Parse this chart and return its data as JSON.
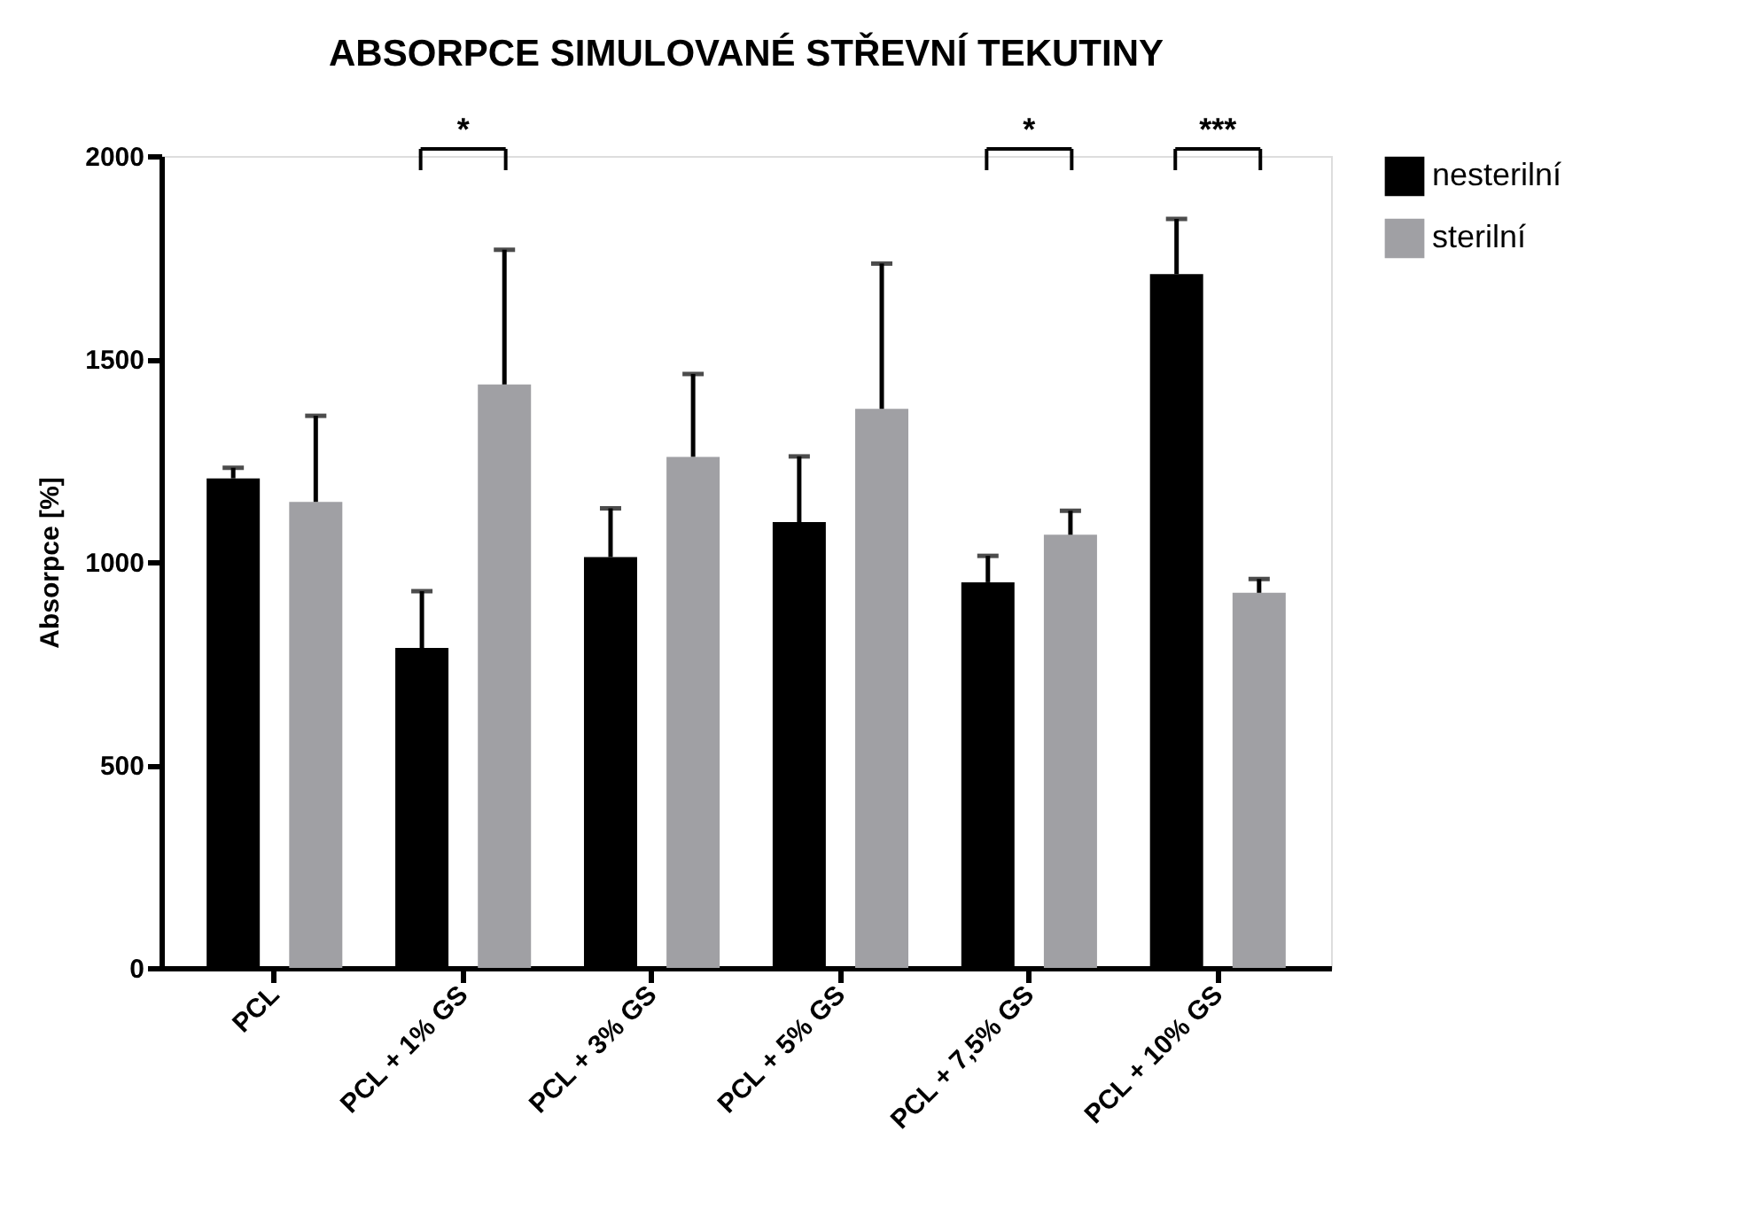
{
  "chart_data": {
    "type": "bar",
    "title": "ABSORPCE SIMULOVANÉ STŘEVNÍ TEKUTINY",
    "ylabel": "Absorpce [%]",
    "categories": [
      "PCL",
      "PCL + 1% GS",
      "PCL + 3% GS",
      "PCL + 5% GS",
      "PCL + 7,5% GS",
      "PCL + 10% GS"
    ],
    "series": [
      {
        "name": "nesterilní",
        "color": "#000000",
        "values": [
          1206,
          788,
          1012,
          1098,
          950,
          1709
        ],
        "errors": [
          [
            1206,
            1232
          ],
          [
            788,
            928
          ],
          [
            1012,
            1132
          ],
          [
            1098,
            1260
          ],
          [
            950,
            1015
          ],
          [
            1709,
            1845
          ]
        ]
      },
      {
        "name": "sterilní",
        "color": "#a0a0a4",
        "values": [
          1148,
          1437,
          1259,
          1377,
          1067,
          924
        ],
        "errors": [
          [
            1148,
            1360
          ],
          [
            1437,
            1769
          ],
          [
            1259,
            1463
          ],
          [
            1377,
            1735
          ],
          [
            1067,
            1126
          ],
          [
            924,
            958
          ]
        ]
      }
    ],
    "ylim": [
      0,
      2000
    ],
    "yticks": [
      0,
      500,
      1000,
      1500,
      2000
    ],
    "grid": false,
    "legend": "right",
    "annotations": [
      "*",
      "*",
      "***"
    ]
  }
}
